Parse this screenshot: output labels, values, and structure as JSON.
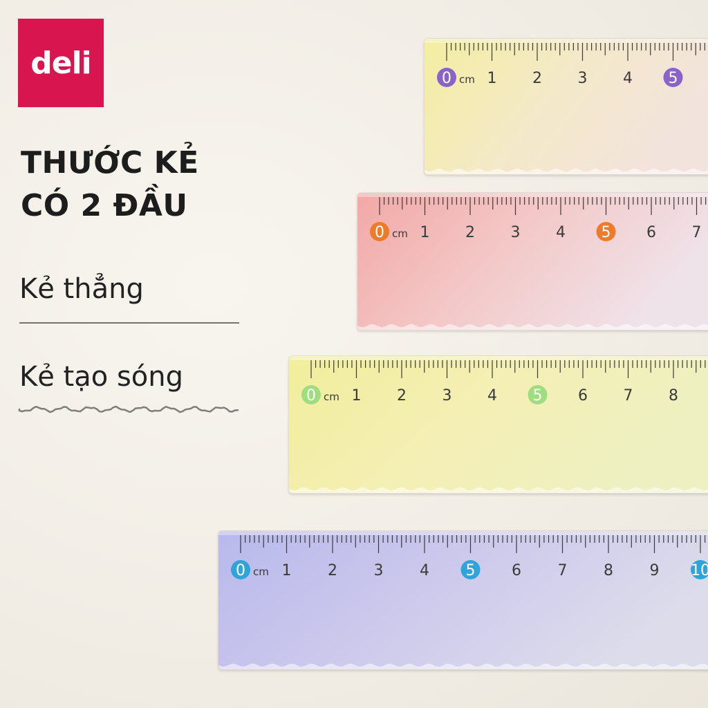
{
  "brand": {
    "logo_text": "deli",
    "color": "#d8154f"
  },
  "headline": {
    "line1": "THƯỚC KẺ",
    "line2": "CÓ 2 ĐẦU"
  },
  "features": [
    {
      "label": "Kẻ thẳng",
      "edge": "straight"
    },
    {
      "label": "Kẻ tạo sóng",
      "edge": "wavy"
    }
  ],
  "rulers": [
    {
      "id": "ruler-yellow-purple",
      "unit": "cm",
      "accent": "#8a62c8",
      "gradient": [
        "#f3eea0",
        "#f4e9c8",
        "#f3e3dd"
      ],
      "visible_numbers": [
        0,
        1,
        2,
        3,
        4,
        5
      ]
    },
    {
      "id": "ruler-pink-orange",
      "unit": "cm",
      "accent": "#ee7b2a",
      "gradient": [
        "#f2a8a6",
        "#f3c9c8",
        "#efe3ea"
      ],
      "visible_numbers": [
        0,
        1,
        2,
        3,
        4,
        5,
        6,
        7
      ]
    },
    {
      "id": "ruler-yellow-green",
      "unit": "cm",
      "accent": "#9ede7e",
      "gradient": [
        "#f1ee9c",
        "#f4efb4",
        "#eef0c2"
      ],
      "visible_numbers": [
        0,
        1,
        2,
        3,
        4,
        5,
        6,
        7,
        8
      ]
    },
    {
      "id": "ruler-blue-cyan",
      "unit": "cm",
      "accent": "#2ea4d9",
      "gradient": [
        "#b8b9ec",
        "#cdc9ec",
        "#dcdceb"
      ],
      "visible_numbers": [
        0,
        1,
        2,
        3,
        4,
        5,
        6,
        7,
        8,
        9,
        10
      ]
    }
  ]
}
